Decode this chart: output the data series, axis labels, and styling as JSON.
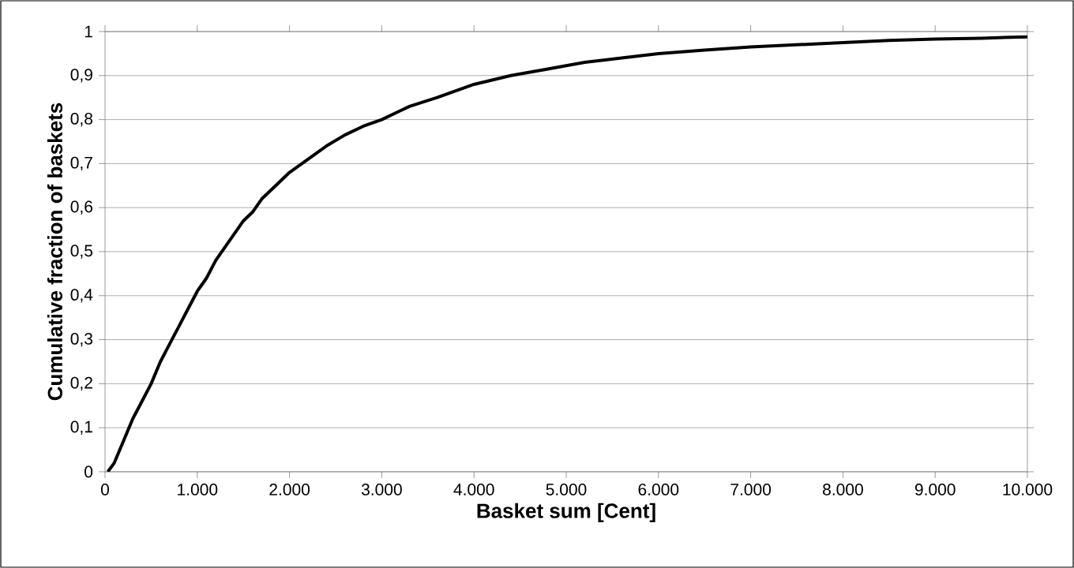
{
  "chart_data": {
    "type": "line",
    "xlabel": "Basket sum [Cent]",
    "ylabel": "Cumulative fraction of baskets",
    "series": [
      {
        "color": "#000000",
        "x": [
          30,
          100,
          200,
          300,
          400,
          500,
          600,
          700,
          800,
          900,
          1000,
          1100,
          1200,
          1300,
          1400,
          1500,
          1600,
          1700,
          1800,
          1900,
          2000,
          2200,
          2400,
          2600,
          2800,
          3000,
          3300,
          3600,
          4000,
          4400,
          4800,
          5200,
          5600,
          6000,
          6500,
          7000,
          7500,
          8000,
          8500,
          9000,
          9500,
          10000
        ],
        "values": [
          0,
          0.02,
          0.07,
          0.12,
          0.16,
          0.2,
          0.25,
          0.29,
          0.33,
          0.37,
          0.41,
          0.44,
          0.48,
          0.51,
          0.54,
          0.57,
          0.59,
          0.62,
          0.64,
          0.66,
          0.68,
          0.71,
          0.74,
          0.765,
          0.785,
          0.8,
          0.83,
          0.85,
          0.88,
          0.9,
          0.915,
          0.93,
          0.94,
          0.95,
          0.958,
          0.965,
          0.97,
          0.975,
          0.98,
          0.983,
          0.985,
          0.988
        ]
      }
    ],
    "xlim": [
      0,
      10000
    ],
    "xticks": [
      0,
      {
        "value": 1000,
        "label": "1.000"
      },
      {
        "value": 2000,
        "label": "2.000"
      },
      {
        "value": 3000,
        "label": "3.000"
      },
      {
        "value": 4000,
        "label": "4.000"
      },
      {
        "value": 5000,
        "label": "5.000"
      },
      {
        "value": 6000,
        "label": "6.000"
      },
      {
        "value": 7000,
        "label": "7.000"
      },
      {
        "value": 8000,
        "label": "8.000"
      },
      {
        "value": 9000,
        "label": "9.000"
      },
      {
        "value": 10000,
        "label": "10.000"
      }
    ],
    "ylim": [
      0,
      1
    ],
    "yticks": [
      0,
      {
        "value": 0.1,
        "label": "0,1"
      },
      {
        "value": 0.2,
        "label": "0,2"
      },
      {
        "value": 0.3,
        "label": "0,3"
      },
      {
        "value": 0.4,
        "label": "0,4"
      },
      {
        "value": 0.5,
        "label": "0,5"
      },
      {
        "value": 0.6,
        "label": "0,6"
      },
      {
        "value": 0.7,
        "label": "0,7"
      },
      {
        "value": 0.8,
        "label": "0,8"
      },
      {
        "value": 0.9,
        "label": "0,9"
      },
      1
    ],
    "grid": "y",
    "marker": "none",
    "line_style": "solid"
  }
}
